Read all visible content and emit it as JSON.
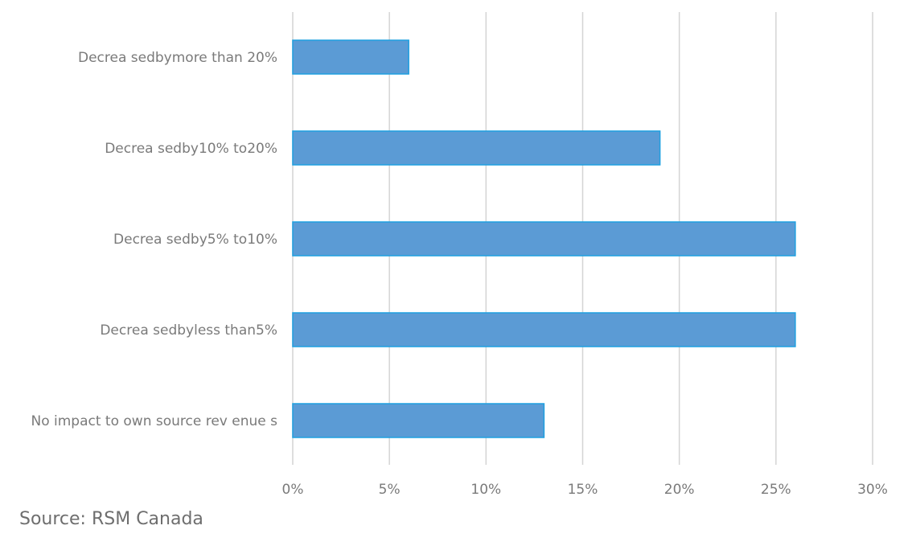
{
  "chart_data": {
    "type": "bar",
    "orientation": "horizontal",
    "categories": [
      "Decrea sedbymore than 20%",
      "Decrea sedby10% to20%",
      "Decrea sedby5% to10%",
      "Decrea sedbyless than5%",
      "No impact to own source rev enue s"
    ],
    "values": [
      6,
      19,
      26,
      26,
      13
    ],
    "xlim": [
      0,
      30
    ],
    "xticks": [
      0,
      5,
      10,
      15,
      20,
      25,
      30
    ],
    "xtick_labels": [
      "0%",
      "5%",
      "10%",
      "15%",
      "20%",
      "25%",
      "30%"
    ],
    "grid": "vertical",
    "bar_color": "#5b9bd5",
    "bar_edge_color": "#1fa0e0",
    "title": "",
    "xlabel": "",
    "ylabel": ""
  },
  "source": "Source: RSM Canada"
}
